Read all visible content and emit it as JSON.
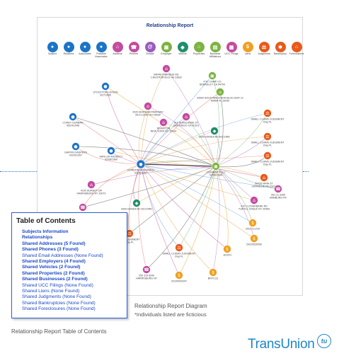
{
  "diagram": {
    "title": "Relationship Report",
    "legend": [
      {
        "label": "Subject",
        "color": "#1c74c8",
        "glyph": "●",
        "icon": "person-icon"
      },
      {
        "label": "Relatives",
        "color": "#1c74c8",
        "glyph": "●",
        "icon": "people-icon"
      },
      {
        "label": "Associates",
        "color": "#1c74c8",
        "glyph": "●",
        "icon": "people-icon"
      },
      {
        "label": "Possible Associates",
        "color": "#1c74c8",
        "glyph": "●",
        "icon": "people-icon"
      },
      {
        "label": "Address",
        "color": "#c44ba0",
        "glyph": "⌂",
        "icon": "house-icon"
      },
      {
        "label": "Phones",
        "color": "#c44ba0",
        "glyph": "☎",
        "icon": "phone-icon"
      },
      {
        "label": "Emails",
        "color": "#9a5bc0",
        "glyph": "@",
        "icon": "email-icon"
      },
      {
        "label": "Employer",
        "color": "#7cb342",
        "glyph": "▣",
        "icon": "building-icon"
      },
      {
        "label": "Vehicle",
        "color": "#1e8f6b",
        "glyph": "◆",
        "icon": "car-icon"
      },
      {
        "label": "Properties",
        "color": "#7cb342",
        "glyph": "⌂",
        "icon": "property-icon"
      },
      {
        "label": "Business Affiliations",
        "color": "#7cb342",
        "glyph": "▤",
        "icon": "business-icon"
      },
      {
        "label": "UCC Filings",
        "color": "#c44ba0",
        "glyph": "▦",
        "icon": "document-icon"
      },
      {
        "label": "Liens",
        "color": "#f0a020",
        "glyph": "$",
        "icon": "lien-icon"
      },
      {
        "label": "Judgments",
        "color": "#e85a1a",
        "glyph": "⚖",
        "icon": "gavel-icon"
      },
      {
        "label": "Bankruptcy",
        "color": "#e85a1a",
        "glyph": "✱",
        "icon": "bankruptcy-icon"
      },
      {
        "label": "Foreclosures",
        "color": "#e85a1a",
        "glyph": "⌂",
        "icon": "foreclosure-icon"
      }
    ],
    "nodes": [
      {
        "id": "n1",
        "type": "address",
        "label": [
          "BRANCHBRIDGE RD",
          "CHESTERFIELD VA 23832"
        ]
      },
      {
        "id": "n2",
        "type": "employer",
        "label": [
          "KTC CAMP CO",
          "BERKELEY CA 94704"
        ]
      },
      {
        "id": "n3",
        "type": "property",
        "label": [
          "33500 SOUTHWESTERN BLVD UNIT 21",
          "MIAMI FL 33030"
        ]
      },
      {
        "id": "n4",
        "type": "person",
        "label": [
          "STOCKTON LAYDEN",
          "3/27/1965"
        ]
      },
      {
        "id": "n5",
        "type": "address",
        "label": [
          "2020 MORGAN PARKWAY",
          "MCCLURE OH 43534"
        ]
      },
      {
        "id": "n6",
        "type": "address",
        "label": [
          "510 DUNSLANSE ST",
          "SAN DIEGO CA 92101"
        ]
      },
      {
        "id": "n7",
        "type": "person",
        "label": [
          "COREY DURBAN",
          "05/24/1948"
        ]
      },
      {
        "id": "n8",
        "type": "address",
        "label": [
          "RIVERTON",
          "NEW YORK NY 10044"
        ]
      },
      {
        "id": "n9",
        "type": "vehicle",
        "label": [
          "2009 HONDA RV ACCORD"
        ]
      },
      {
        "id": "n10",
        "type": "judgment",
        "label": [
          "SMALL CLAIMS JUDGMENT",
          "Clay FL"
        ]
      },
      {
        "id": "n11",
        "type": "person",
        "label": [
          "GARVIN GASPERS",
          "03/29/1957"
        ]
      },
      {
        "id": "n12",
        "type": "person",
        "label": [
          "WAYLON MCNEICY",
          "02/08/1960"
        ]
      },
      {
        "id": "n13",
        "type": "judgment",
        "label": [
          "SMALL CLAIMS JUDGMENT",
          "Clay FL"
        ]
      },
      {
        "id": "n14",
        "type": "subject",
        "label": [
          "GORDON MCDONALD",
          "02/08/1947"
        ]
      },
      {
        "id": "n15",
        "type": "employer",
        "label": [
          "CLEMENTS LLC",
          "02/08/1966"
        ]
      },
      {
        "id": "n16",
        "type": "judgment",
        "label": [
          "SMALL CLAIMS JUDGMENT",
          "Clay FL"
        ]
      },
      {
        "id": "n17",
        "type": "foreclosure",
        "label": [
          "50026 MAIN ST",
          "CARNEGIE PA 15106"
        ]
      },
      {
        "id": "n18",
        "type": "address",
        "label": [
          "4100 DURBOT DR",
          "HARRISBURG NY 19073"
        ]
      },
      {
        "id": "n19",
        "type": "phone",
        "label": [
          "951.21.3355",
          "HAMBURG NY"
        ]
      },
      {
        "id": "n20",
        "type": "phone",
        "label": [
          "951.21.3355"
        ]
      },
      {
        "id": "n21",
        "type": "vehicle",
        "label": [
          "2009 HONDA RV ACCORD"
        ]
      },
      {
        "id": "n22",
        "type": "address",
        "label": [
          "410 CLOVERBANK RD",
          "TURTLE CREEK NY 20450"
        ]
      },
      {
        "id": "n23",
        "type": "lien",
        "label": [
          "2011 IC1720"
        ]
      },
      {
        "id": "n24",
        "type": "judgment",
        "label": [
          "AXIS JUDGMENT",
          "Clay FL"
        ]
      },
      {
        "id": "n25",
        "type": "lien",
        "label": [
          "JUSCH"
        ]
      },
      {
        "id": "n26",
        "type": "lien",
        "label": [
          "20010530050"
        ]
      },
      {
        "id": "n27",
        "type": "judgment",
        "label": [
          "SMALL CLAIMS JUDGMENT",
          "Clay FL"
        ]
      },
      {
        "id": "n28",
        "type": "phone",
        "label": [
          "250 315 8340",
          "HARRISBURG NY"
        ]
      },
      {
        "id": "n29",
        "type": "lien",
        "label": [
          "20100000347"
        ]
      },
      {
        "id": "n30",
        "type": "lien",
        "label": [
          "BRYCLE"
        ]
      }
    ]
  },
  "toc": {
    "title": "Table of Contents",
    "items": [
      {
        "text": "Subjects Information",
        "bold": true
      },
      {
        "text": "Relationships",
        "bold": true
      },
      {
        "text": "Shared Addresses (5 Found)",
        "bold": true
      },
      {
        "text": "Shared Phones (3 Found)",
        "bold": true
      },
      {
        "text": "Shared Email Addresses (None Found)",
        "bold": false
      },
      {
        "text": "Shared Employers (4 Found)",
        "bold": true
      },
      {
        "text": "Shared Vehicles (2 Found)",
        "bold": true
      },
      {
        "text": "Shared Properties (2 Found)",
        "bold": true
      },
      {
        "text": "Shared Businesses (2 Found)",
        "bold": true
      },
      {
        "text": "Shared UCC Filings (None Found)",
        "bold": false
      },
      {
        "text": "Shared Liens (None Found)",
        "bold": false
      },
      {
        "text": "Shared Judgments (None Found)",
        "bold": false
      },
      {
        "text": "Shared Bankruptcies (None Found)",
        "bold": false
      },
      {
        "text": "Shared Foreclosures (None Found)",
        "bold": false
      }
    ]
  },
  "captions": {
    "diagram": "Relationship Report Diagram",
    "note": "*Individuals listed are ficticious",
    "toc": "Relationship Report Table of Contents"
  },
  "brand": {
    "name": "TransUnion",
    "badge": "tu",
    "color": "#1e87c8"
  }
}
